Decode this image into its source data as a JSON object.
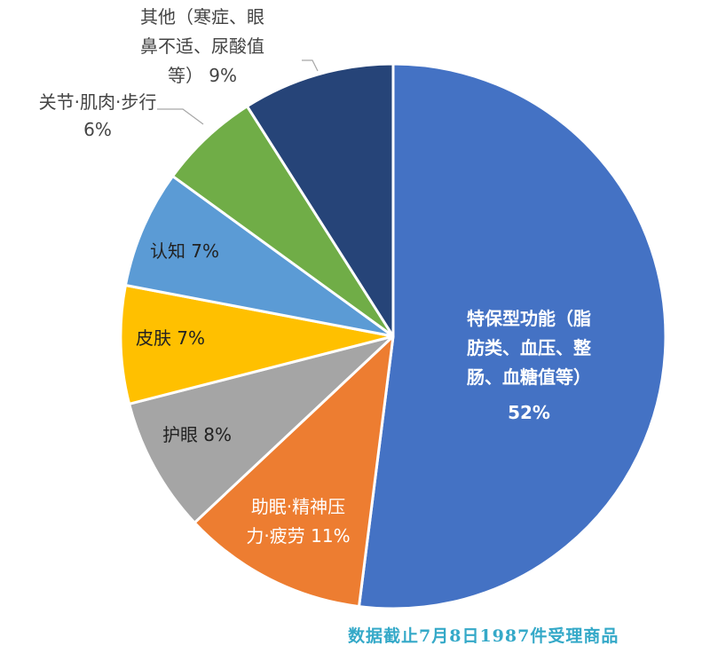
{
  "chart_data": {
    "type": "pie",
    "slices": [
      {
        "label": "特保型功能（脂肪类、血压、整肠、血糖值等）",
        "label_lines": [
          "特保型功能（脂",
          "肪类、血压、整",
          "肠、血糖值等）"
        ],
        "percent_label": "52%",
        "value": 52,
        "color": "#4472c4",
        "text_color": "#ffffff"
      },
      {
        "label": "助眠·精神压力·疲劳",
        "label_lines": [
          "助眠·精神压",
          "力·疲劳 11%"
        ],
        "percent_label": "",
        "value": 11,
        "color": "#ed7d31",
        "text_color": "#ffffff"
      },
      {
        "label": "护眼",
        "label_lines": [
          "护眼 8%"
        ],
        "percent_label": "",
        "value": 8,
        "color": "#a5a5a5",
        "text_color": "#222222"
      },
      {
        "label": "皮肤",
        "label_lines": [
          "皮肤 7%"
        ],
        "percent_label": "",
        "value": 7,
        "color": "#ffc000",
        "text_color": "#222222"
      },
      {
        "label": "认知",
        "label_lines": [
          "认知 7%"
        ],
        "percent_label": "",
        "value": 7,
        "color": "#5b9bd5",
        "text_color": "#222222"
      },
      {
        "label": "关节·肌肉·步行",
        "label_lines": [
          "关节·肌肉·步行",
          "6%"
        ],
        "percent_label": "",
        "value": 6,
        "color": "#70ad47",
        "text_color": "#444444"
      },
      {
        "label": "其他（寒症、眼鼻不适、尿酸值等）",
        "label_lines": [
          "其他（寒症、眼",
          "鼻不适、尿酸值",
          "等） 9%"
        ],
        "percent_label": "",
        "value": 9,
        "color": "#264478",
        "text_color": "#444444"
      }
    ],
    "legend": "none",
    "start_angle": "12 o'clock",
    "direction": "clockwise"
  },
  "source_note": "数据截止7月8日1987件受理商品"
}
